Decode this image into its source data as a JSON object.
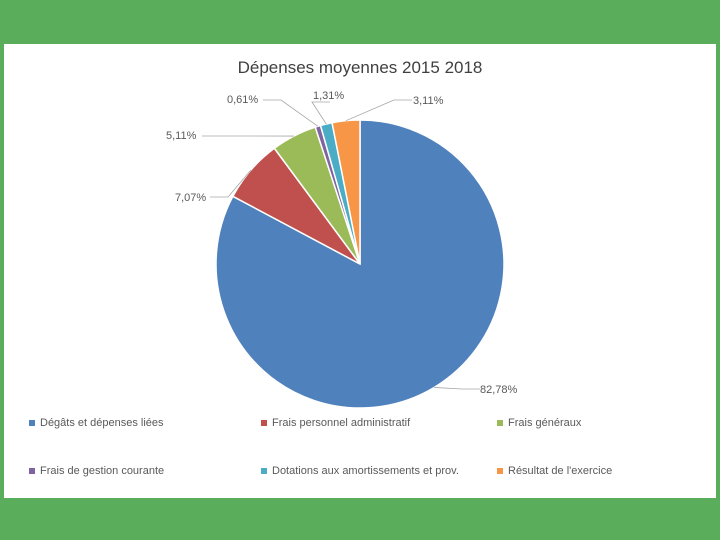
{
  "chart_data": {
    "type": "pie",
    "title": "Dépenses  moyennes  2015 2018",
    "categories": [
      "Dégâts et dépenses liées",
      "Frais personnel administratif",
      "Frais généraux",
      "Frais de gestion courante",
      "Dotations aux amortissements et prov.",
      "Résultat de l'exercice"
    ],
    "values": [
      82.78,
      7.07,
      5.11,
      0.61,
      1.31,
      3.11
    ],
    "data_labels": [
      "82,78%",
      "7,07%",
      "5,11%",
      "0,61%",
      "1,31%",
      "3,11%"
    ],
    "colors": [
      "#4f81bd",
      "#c0504d",
      "#9bbb59",
      "#8064a2",
      "#4bacc6",
      "#f79646"
    ],
    "legend_position": "bottom"
  }
}
